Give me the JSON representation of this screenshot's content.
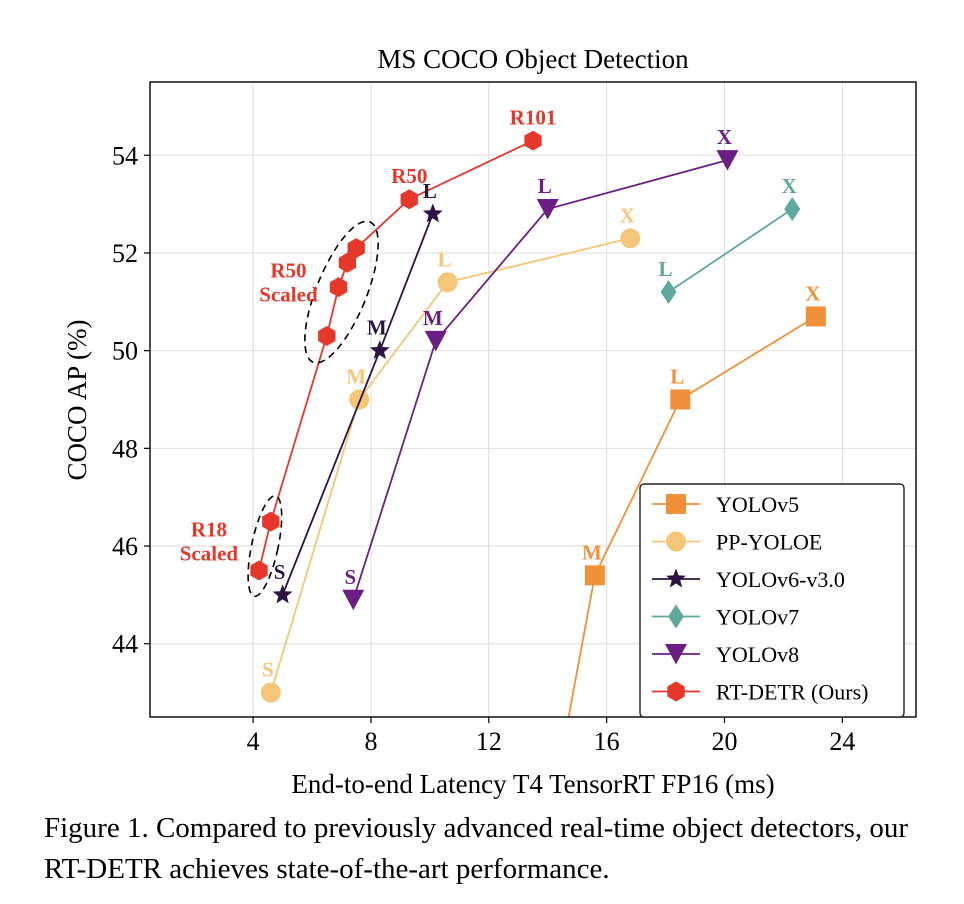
{
  "chart_data": {
    "type": "line",
    "title": "MS COCO Object Detection",
    "xlabel": "End-to-end Latency T4 TensorRT FP16 (ms)",
    "ylabel": "COCO AP (%)",
    "xlim": [
      0.5,
      26.5
    ],
    "ylim": [
      42.5,
      55.5
    ],
    "xticks": [
      4,
      8,
      12,
      16,
      20,
      24
    ],
    "yticks": [
      44,
      46,
      48,
      50,
      52,
      54
    ],
    "grid": true,
    "legend": "lower-right",
    "series": [
      {
        "name": "YOLOv5",
        "color": "#f0913a",
        "marker": "square",
        "points": [
          {
            "x": 14.4,
            "y": 41.5,
            "label": ""
          },
          {
            "x": 15.6,
            "y": 45.4,
            "label": "M"
          },
          {
            "x": 18.5,
            "y": 49.0,
            "label": "L"
          },
          {
            "x": 23.1,
            "y": 50.7,
            "label": "X"
          }
        ]
      },
      {
        "name": "PP-YOLOE",
        "color": "#f5c578",
        "marker": "circle",
        "points": [
          {
            "x": 4.6,
            "y": 43.0,
            "label": "S"
          },
          {
            "x": 7.6,
            "y": 49.0,
            "label": "M"
          },
          {
            "x": 10.6,
            "y": 51.4,
            "label": "L"
          },
          {
            "x": 16.8,
            "y": 52.3,
            "label": "X"
          }
        ]
      },
      {
        "name": "YOLOv6-v3.0",
        "color": "#2b1442",
        "marker": "star",
        "points": [
          {
            "x": 5.0,
            "y": 45.0,
            "label": "S"
          },
          {
            "x": 8.3,
            "y": 50.0,
            "label": "M"
          },
          {
            "x": 10.1,
            "y": 52.8,
            "label": "L"
          }
        ]
      },
      {
        "name": "YOLOv7",
        "color": "#5fa89d",
        "marker": "diamond",
        "points": [
          {
            "x": 18.1,
            "y": 51.2,
            "label": "L"
          },
          {
            "x": 22.3,
            "y": 52.9,
            "label": "X"
          }
        ]
      },
      {
        "name": "YOLOv8",
        "color": "#6b1f83",
        "marker": "triangle-down",
        "points": [
          {
            "x": 7.4,
            "y": 44.9,
            "label": "S"
          },
          {
            "x": 10.2,
            "y": 50.2,
            "label": "M"
          },
          {
            "x": 14.0,
            "y": 52.9,
            "label": "L"
          },
          {
            "x": 20.1,
            "y": 53.9,
            "label": "X"
          }
        ]
      },
      {
        "name": "RT-DETR (Ours)",
        "color": "#e5382a",
        "marker": "hexagon",
        "points": [
          {
            "x": 4.2,
            "y": 45.5,
            "label": ""
          },
          {
            "x": 4.6,
            "y": 46.5,
            "label": ""
          },
          {
            "x": 6.5,
            "y": 50.3,
            "label": ""
          },
          {
            "x": 6.9,
            "y": 51.3,
            "label": ""
          },
          {
            "x": 7.2,
            "y": 51.8,
            "label": ""
          },
          {
            "x": 7.5,
            "y": 52.1,
            "label": ""
          },
          {
            "x": 9.3,
            "y": 53.1,
            "label": "R50"
          },
          {
            "x": 13.5,
            "y": 54.3,
            "label": "R101"
          }
        ]
      }
    ],
    "annotations": [
      {
        "lines": [
          "R50",
          "Scaled"
        ],
        "color": "#e5382a",
        "x": 5.2,
        "y": 51.5,
        "anchor": "middle"
      },
      {
        "lines": [
          "R18",
          "Scaled"
        ],
        "color": "#e5382a",
        "x": 2.5,
        "y": 46.2,
        "anchor": "middle"
      }
    ],
    "ellipses": [
      {
        "cx": 7.0,
        "cy": 51.2,
        "rx": 0.85,
        "ry": 1.55,
        "rotate": 22
      },
      {
        "cx": 4.4,
        "cy": 46.0,
        "rx": 0.45,
        "ry": 1.05,
        "rotate": 12
      }
    ]
  },
  "caption": "Figure 1. Compared to previously advanced real-time object detectors, our RT-DETR achieves state-of-the-art performance."
}
